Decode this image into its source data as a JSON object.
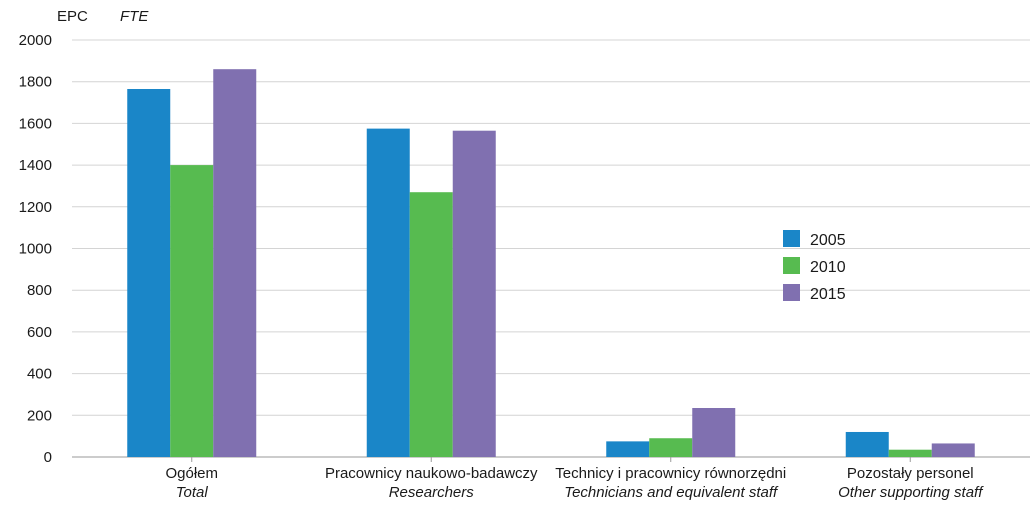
{
  "chart_data": {
    "type": "bar",
    "unit_label": "EPC",
    "unit_label_alt": "FTE",
    "categories": [
      {
        "label": "Ogółem",
        "sublabel": "Total"
      },
      {
        "label": "Pracownicy naukowo-badawczy",
        "sublabel": "Researchers"
      },
      {
        "label": "Technicy i pracownicy równorzędni",
        "sublabel": "Technicians and equivalent staff"
      },
      {
        "label": "Pozostały personel",
        "sublabel": "Other supporting staff"
      }
    ],
    "series": [
      {
        "name": "2005",
        "color": "#1a86c8",
        "values": [
          1765,
          1575,
          75,
          120
        ]
      },
      {
        "name": "2010",
        "color": "#57bb50",
        "values": [
          1400,
          1270,
          90,
          35
        ]
      },
      {
        "name": "2015",
        "color": "#8070b0",
        "values": [
          1860,
          1565,
          235,
          65
        ]
      }
    ],
    "ylim": [
      0,
      2000
    ],
    "yticks": [
      "0",
      "200",
      "400",
      "600",
      "800",
      "1000",
      "1200",
      "1400",
      "1600",
      "1800",
      "2000"
    ],
    "grid": true,
    "legend_position": "right"
  }
}
